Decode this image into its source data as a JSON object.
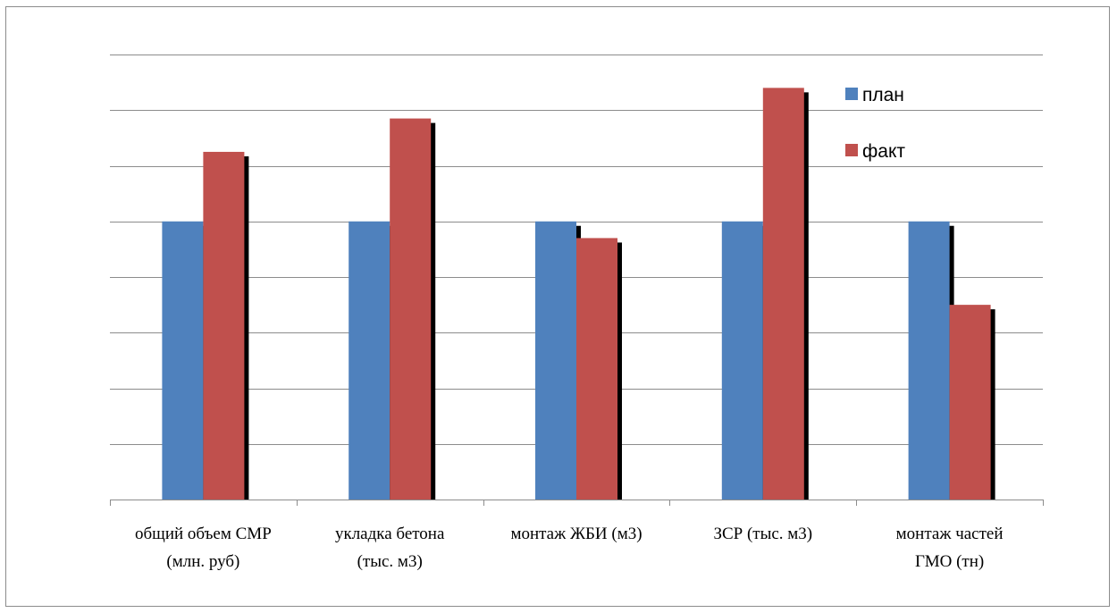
{
  "chart_data": {
    "type": "bar",
    "title": "",
    "xlabel": "",
    "ylabel": "",
    "categories": [
      [
        "общий объем СМР",
        "(млн. руб)"
      ],
      [
        "укладка бетона",
        "(тыс. м3)"
      ],
      [
        "монтаж ЖБИ (м3)"
      ],
      [
        "ЗСР (тыс. м3)"
      ],
      [
        "монтаж частей",
        "ГМО (тн)"
      ]
    ],
    "series": [
      {
        "name": "план",
        "color": "#4F81BD",
        "values": [
          100,
          100,
          100,
          100,
          100
        ]
      },
      {
        "name": "факт",
        "color": "#C0504D",
        "values": [
          125,
          137,
          94,
          148,
          70
        ]
      }
    ],
    "ylim": [
      0,
      160
    ],
    "y_gridline_step": 20,
    "y_tick_labels_shown": false,
    "grid": true,
    "bar_shadow": true,
    "legend_position": "top-right"
  }
}
